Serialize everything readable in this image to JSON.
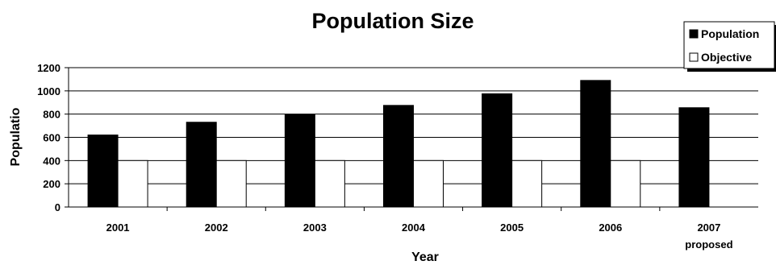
{
  "chart_data": {
    "type": "bar",
    "title": "Population Size",
    "xlabel": "Year",
    "ylabel": "Populatio",
    "categories": [
      "2001",
      "2002",
      "2003",
      "2004",
      "2005",
      "2006",
      "2007"
    ],
    "category_sublabels": [
      "",
      "",
      "",
      "",
      "",
      "",
      "proposed"
    ],
    "series": [
      {
        "name": "Population",
        "values": [
          620,
          730,
          795,
          875,
          975,
          1090,
          855
        ],
        "color": "#000000"
      },
      {
        "name": "Objective",
        "values": [
          400,
          400,
          400,
          400,
          400,
          400,
          null
        ],
        "color": "#ffffff"
      }
    ],
    "ylim": [
      0,
      1200
    ],
    "yticks": [
      0,
      200,
      400,
      600,
      800,
      1000,
      1200
    ],
    "grid": true,
    "legend_position": "top-right"
  }
}
